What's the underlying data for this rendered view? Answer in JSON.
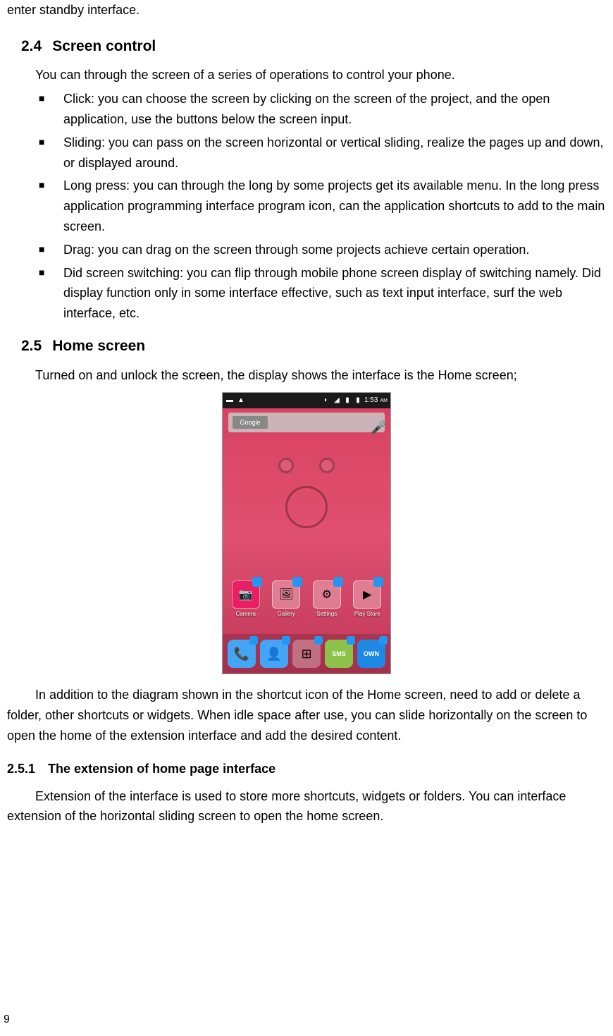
{
  "topFragment": "enter standby interface.",
  "section24": {
    "number": "2.4",
    "title": "Screen control",
    "intro": "You can through the screen of a series of operations to control your phone.",
    "bullets": [
      "Click: you can choose the screen by clicking on the screen of the project, and the open application, use the buttons below the screen input.",
      "Sliding: you can pass on the screen horizontal or vertical sliding, realize the pages up and down, or displayed around.",
      "Long press: you can through the long by some projects get its available menu. In the long press application programming interface program icon, can the application shortcuts to add to the main screen.",
      "Drag: you can drag on the screen through some projects achieve certain operation.",
      "Did screen switching: you can flip through mobile phone screen display of switching namely. Did display function only in some interface effective, such as text input interface, surf the web interface, etc."
    ]
  },
  "section25": {
    "number": "2.5",
    "title": "Home screen",
    "intro": "Turned on and unlock the screen, the display shows the interface is the Home screen;",
    "afterImage": "In addition to the diagram shown in the shortcut icon of the Home screen, need to add or delete a folder, other shortcuts or widgets. When idle space after use, you can slide horizontally on the screen to open the home of the extension interface and add the desired content."
  },
  "section251": {
    "number": "2.5.1",
    "title": "The extension of home page interface",
    "body": "Extension of the interface is used to store more shortcuts, widgets or folders. You can interface extension of the horizontal sliding screen to open the home screen."
  },
  "screenshot": {
    "statusTime": "1:53",
    "statusAmPm": "AM",
    "searchLogo": "Google",
    "apps": {
      "camera": "Camera",
      "gallery": "Gallery",
      "settings": "Settings",
      "playstore": "Play Store"
    },
    "dock": {
      "phone": "phone",
      "contacts": "contacts",
      "apps": "apps",
      "sms": "sms",
      "own": "OWN"
    },
    "colors": {
      "statusBg": "#1a1a1a",
      "folderBadge": "#2196f3",
      "ownIcon": "#1e88e5",
      "smsIcon": "#8bc34a",
      "contactsIcon": "#42a5f5",
      "phoneIcon": "#42a5f5",
      "cameraIcon": "#e91e63"
    }
  },
  "pageNumber": "9"
}
